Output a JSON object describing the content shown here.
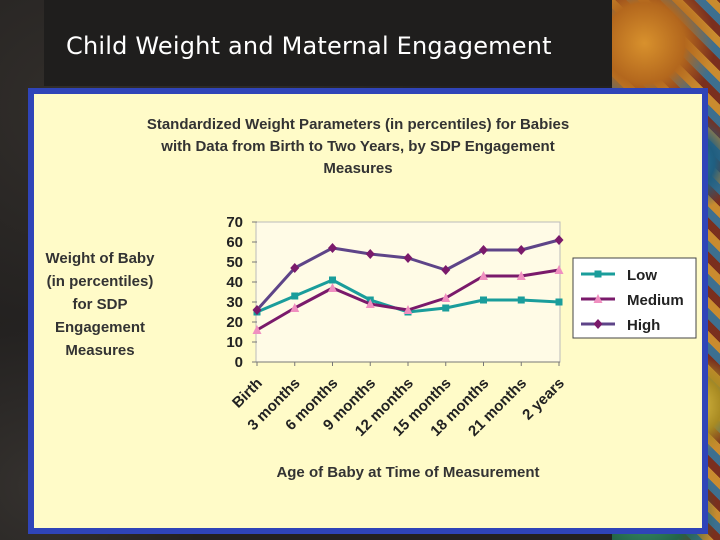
{
  "slide": {
    "title": "Child Weight and Maternal Engagement"
  },
  "colors": {
    "panel": "#fffbc8",
    "frame": "#2f44b8",
    "low": "#1a9d9b",
    "medium": "#7a1a6b",
    "high": "#5e4488",
    "medium_marker": "#f08fc0"
  },
  "chart_data": {
    "type": "line",
    "title_lines": [
      "Standardized Weight Parameters (in percentiles) for Babies",
      "with Data from Birth to Two Years, by SDP Engagement",
      "Measures"
    ],
    "ylabel_lines": [
      "Weight of Baby",
      "(in percentiles)",
      "for SDP",
      "Engagement",
      "Measures"
    ],
    "xlabel": "Age of Baby at Time of Measurement",
    "categories": [
      "Birth",
      "3 months",
      "6 months",
      "9 months",
      "12 months",
      "15 months",
      "18 months",
      "21 months",
      "2 years"
    ],
    "y_ticks": [
      "0",
      "10",
      "20",
      "30",
      "40",
      "50",
      "60",
      "70"
    ],
    "ylim": [
      0,
      70
    ],
    "legend_position": "right",
    "series": [
      {
        "name": "Low",
        "values": [
          25,
          33,
          41,
          31,
          25,
          27,
          31,
          31,
          30
        ]
      },
      {
        "name": "Medium",
        "values": [
          16,
          27,
          37,
          29,
          26,
          32,
          43,
          43,
          46
        ]
      },
      {
        "name": "High",
        "values": [
          26,
          47,
          57,
          54,
          52,
          46,
          56,
          56,
          61
        ]
      }
    ]
  }
}
